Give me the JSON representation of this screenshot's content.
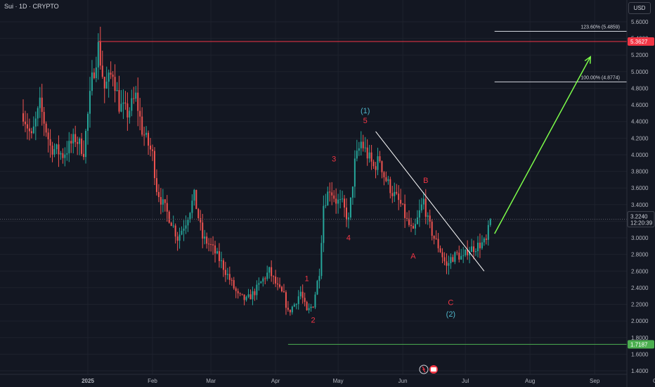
{
  "header": {
    "title": "Sui · 1D · CRYPTO",
    "currency_button": "USD"
  },
  "colors": {
    "background": "#131722",
    "grid": "#1e222d",
    "up_candle": "#26a69a",
    "down_candle": "#ef5350",
    "resistance_line": "#f23645",
    "support_line": "#4caf50",
    "projection_arrow": "#7cfc4a",
    "trendline": "#ffffff",
    "wave_red": "#f23645",
    "wave_teal": "#4fb4c8"
  },
  "chart_data": {
    "type": "candlestick",
    "x_axis": {
      "labels": [
        "2025",
        "Feb",
        "Mar",
        "Apr",
        "May",
        "Jun",
        "Jul",
        "Aug",
        "Sep",
        "Oct"
      ],
      "start_date": "2024-12-01",
      "label_dates": [
        "2025-01-01",
        "2025-02-01",
        "2025-03-01",
        "2025-04-01",
        "2025-05-01",
        "2025-06-01",
        "2025-07-01",
        "2025-08-01",
        "2025-09-01",
        "2025-10-01"
      ]
    },
    "y_axis": {
      "range": [
        1.28,
        5.68
      ],
      "ticks": [
        "5.6000",
        "5.4000",
        "5.2000",
        "5.0000",
        "4.8000",
        "4.6000",
        "4.4000",
        "4.2000",
        "4.0000",
        "3.8000",
        "3.6000",
        "3.4000",
        "3.2000",
        "3.0000",
        "2.8000",
        "2.6000",
        "2.4000",
        "2.2000",
        "2.0000",
        "1.8000",
        "1.6000",
        "1.4000"
      ],
      "tick_values": [
        5.6,
        5.4,
        5.2,
        5.0,
        4.8,
        4.6,
        4.4,
        4.2,
        4.0,
        3.8,
        3.6,
        3.4,
        3.2,
        3.0,
        2.8,
        2.6,
        2.4,
        2.2,
        2.0,
        1.8,
        1.6,
        1.4
      ]
    },
    "price_anchors": [
      [
        "2024-12-01",
        4.5
      ],
      [
        "2024-12-05",
        4.2
      ],
      [
        "2024-12-09",
        4.6
      ],
      [
        "2024-12-14",
        4.1
      ],
      [
        "2024-12-20",
        4.0
      ],
      [
        "2024-12-26",
        4.2
      ],
      [
        "2024-12-30",
        4.05
      ],
      [
        "2025-01-03",
        4.9
      ],
      [
        "2025-01-06",
        5.3
      ],
      [
        "2025-01-09",
        4.8
      ],
      [
        "2025-01-13",
        5.0
      ],
      [
        "2025-01-16",
        4.6
      ],
      [
        "2025-01-20",
        4.5
      ],
      [
        "2025-01-24",
        4.7
      ],
      [
        "2025-01-27",
        4.3
      ],
      [
        "2025-02-01",
        4.0
      ],
      [
        "2025-02-03",
        3.6
      ],
      [
        "2025-02-06",
        3.4
      ],
      [
        "2025-02-10",
        3.2
      ],
      [
        "2025-02-13",
        3.0
      ],
      [
        "2025-02-17",
        3.2
      ],
      [
        "2025-02-21",
        3.5
      ],
      [
        "2025-02-25",
        3.0
      ],
      [
        "2025-03-01",
        2.9
      ],
      [
        "2025-03-06",
        2.7
      ],
      [
        "2025-03-10",
        2.5
      ],
      [
        "2025-03-14",
        2.3
      ],
      [
        "2025-03-18",
        2.25
      ],
      [
        "2025-03-22",
        2.35
      ],
      [
        "2025-03-26",
        2.5
      ],
      [
        "2025-03-29",
        2.6
      ],
      [
        "2025-04-02",
        2.4
      ],
      [
        "2025-04-05",
        2.3
      ],
      [
        "2025-04-07",
        2.1
      ],
      [
        "2025-04-10",
        2.2
      ],
      [
        "2025-04-13",
        2.35
      ],
      [
        "2025-04-16",
        2.1
      ],
      [
        "2025-04-19",
        2.2
      ],
      [
        "2025-04-22",
        2.6
      ],
      [
        "2025-04-24",
        3.4
      ],
      [
        "2025-04-27",
        3.6
      ],
      [
        "2025-04-30",
        3.45
      ],
      [
        "2025-05-03",
        3.4
      ],
      [
        "2025-05-06",
        3.2
      ],
      [
        "2025-05-09",
        3.9
      ],
      [
        "2025-05-12",
        4.15
      ],
      [
        "2025-05-15",
        4.0
      ],
      [
        "2025-05-18",
        3.85
      ],
      [
        "2025-05-21",
        3.95
      ],
      [
        "2025-05-23",
        3.75
      ],
      [
        "2025-05-27",
        3.55
      ],
      [
        "2025-05-31",
        3.4
      ],
      [
        "2025-06-03",
        3.2
      ],
      [
        "2025-06-06",
        3.05
      ],
      [
        "2025-06-09",
        3.3
      ],
      [
        "2025-06-11",
        3.45
      ],
      [
        "2025-06-13",
        3.2
      ],
      [
        "2025-06-16",
        3.0
      ],
      [
        "2025-06-19",
        2.85
      ],
      [
        "2025-06-22",
        2.65
      ],
      [
        "2025-06-24",
        2.75
      ],
      [
        "2025-06-27",
        2.8
      ],
      [
        "2025-06-30",
        2.75
      ],
      [
        "2025-07-02",
        2.85
      ],
      [
        "2025-07-05",
        2.88
      ],
      [
        "2025-07-08",
        2.92
      ],
      [
        "2025-07-11",
        2.95
      ],
      [
        "2025-07-13",
        3.224
      ]
    ],
    "levels": [
      {
        "name": "resistance",
        "value": 5.3627,
        "label": "5.3627",
        "from": "2025-01-06"
      },
      {
        "name": "support",
        "value": 1.7187,
        "label": "1.7187",
        "from": "2025-04-07"
      },
      {
        "name": "fib-100",
        "value": 4.8774,
        "label": "100.00% (4.8774)",
        "from": "2025-07-15"
      },
      {
        "name": "fib-123",
        "value": 5.4859,
        "label": "123.60% (5.4859)",
        "from": "2025-07-15"
      }
    ],
    "current_price": {
      "value": 3.224,
      "label": "3.2240",
      "countdown": "12:20:39"
    },
    "trendline": {
      "from": [
        "2025-05-19",
        4.28
      ],
      "to": [
        "2025-07-10",
        2.6
      ]
    },
    "projection": {
      "from": [
        "2025-07-15",
        3.05
      ],
      "to": [
        "2025-08-30",
        5.18
      ]
    },
    "waves": [
      {
        "label": "(1)",
        "date": "2025-05-14",
        "price": 4.5,
        "color": "teal"
      },
      {
        "label": "5",
        "date": "2025-05-14",
        "price": 4.38,
        "color": "red"
      },
      {
        "label": "3",
        "date": "2025-04-29",
        "price": 3.92,
        "color": "red"
      },
      {
        "label": "4",
        "date": "2025-05-06",
        "price": 2.97,
        "color": "red"
      },
      {
        "label": "1",
        "date": "2025-04-16",
        "price": 2.48,
        "color": "red"
      },
      {
        "label": "2",
        "date": "2025-04-19",
        "price": 1.98,
        "color": "red"
      },
      {
        "label": "B",
        "date": "2025-06-12",
        "price": 3.66,
        "color": "red"
      },
      {
        "label": "A",
        "date": "2025-06-06",
        "price": 2.75,
        "color": "red"
      },
      {
        "label": "C",
        "date": "2025-06-24",
        "price": 2.19,
        "color": "red"
      },
      {
        "label": "(2)",
        "date": "2025-06-24",
        "price": 2.05,
        "color": "teal"
      }
    ]
  }
}
